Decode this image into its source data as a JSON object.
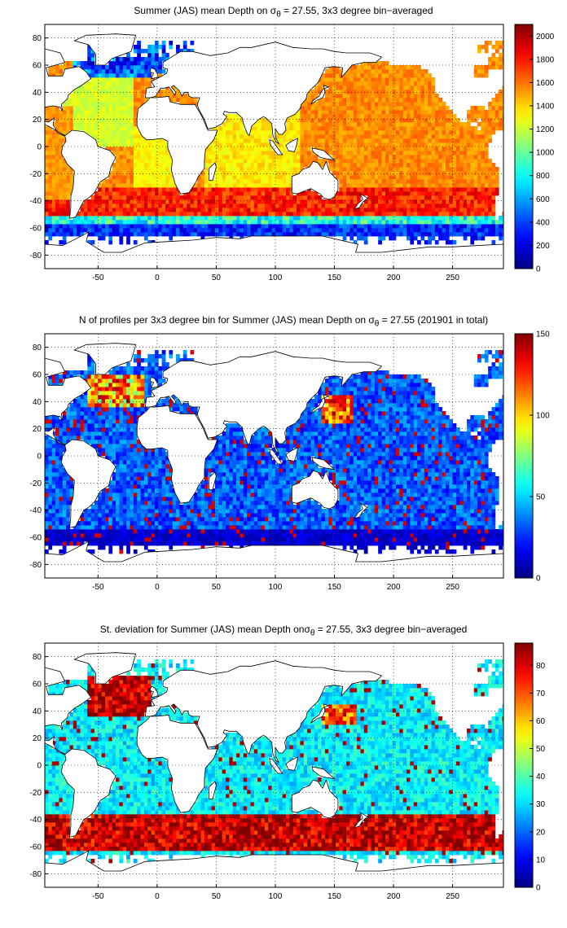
{
  "panels": [
    {
      "title_prefix": "Summer (JAS) mean Depth on σ",
      "title_sub": "θ",
      "title_suffix": " = 27.55, 3x3 degree bin−averaged",
      "colorbar_ticks": [
        "0",
        "200",
        "400",
        "600",
        "800",
        "1000",
        "1200",
        "1400",
        "1600",
        "1800",
        "2000"
      ],
      "colorbar_range": [
        0,
        2100
      ],
      "field": "depth"
    },
    {
      "title_prefix": "N of profiles per 3x3 degree bin for Summer (JAS) mean Depth on σ",
      "title_sub": "θ",
      "title_suffix": " = 27.55 (201901 in total)",
      "colorbar_ticks": [
        "0",
        "50",
        "100",
        "150"
      ],
      "colorbar_range": [
        0,
        150
      ],
      "field": "count"
    },
    {
      "title_prefix": "St. deviation for Summer (JAS) mean Depth onσ",
      "title_sub": "θ",
      "title_suffix": " = 27.55, 3x3 degree bin−averaged",
      "colorbar_ticks": [
        "0",
        "10",
        "20",
        "30",
        "40",
        "50",
        "60",
        "70",
        "80"
      ],
      "colorbar_range": [
        0,
        88
      ],
      "field": "std"
    }
  ],
  "map": {
    "x_ticks": [
      "-50",
      "0",
      "50",
      "100",
      "150",
      "200",
      "250"
    ],
    "y_ticks": [
      "80",
      "60",
      "40",
      "20",
      "0",
      "-20",
      "-40",
      "-60",
      "-80"
    ],
    "lon_range": [
      -95,
      293
    ],
    "lat_range": [
      -90,
      90
    ]
  }
}
